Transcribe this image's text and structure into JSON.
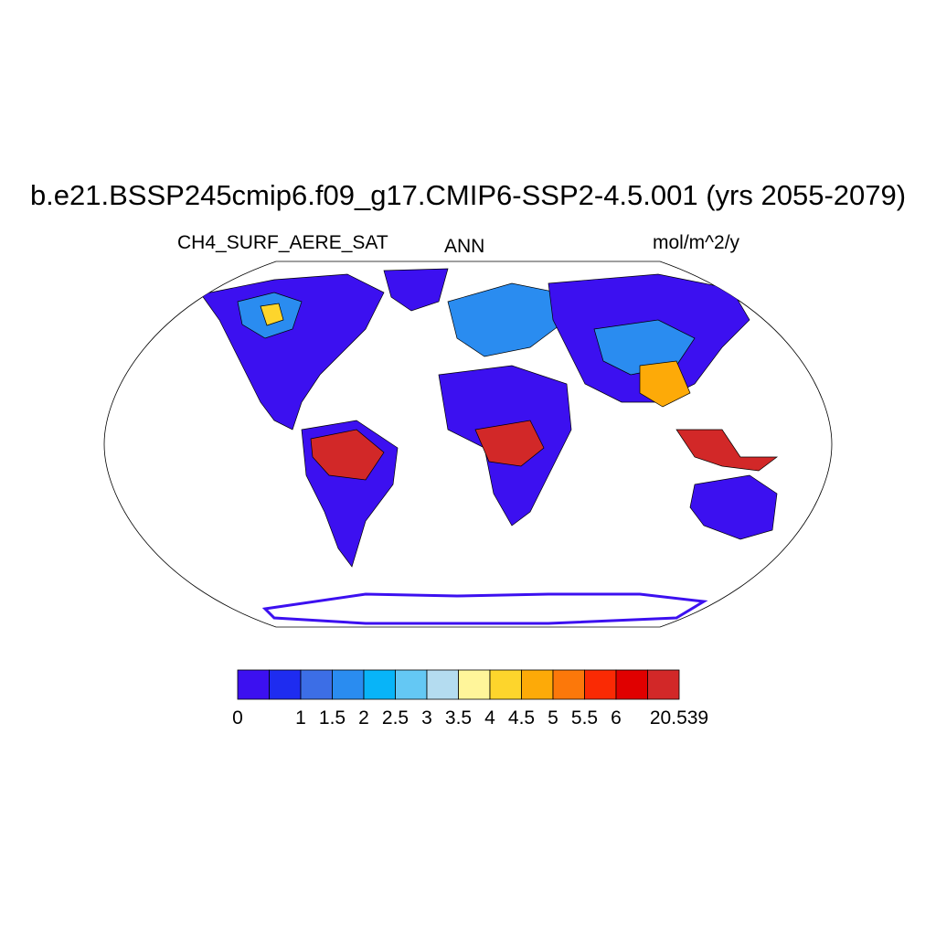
{
  "title": "b.e21.BSSP245cmip6.f09_g17.CMIP6-SSP2-4.5.001 (yrs 2055-2079)",
  "variable": "CH4_SURF_AERE_SAT",
  "season": "ANN",
  "units": "mol/m^2/y",
  "colorbar": {
    "colors": [
      "#3c10f0",
      "#1e2cf0",
      "#3c6ee6",
      "#2a8cf0",
      "#08b4f8",
      "#64c8f4",
      "#b4dcf0",
      "#fff59a",
      "#fdd52c",
      "#fdaa08",
      "#fc780a",
      "#fa2a04",
      "#e00000",
      "#d22828"
    ],
    "labels": [
      "0",
      "",
      "1",
      "1.5",
      "2",
      "2.5",
      "3",
      "3.5",
      "4",
      "4.5",
      "5",
      "5.5",
      "6",
      "",
      "20.539"
    ]
  },
  "map_legend": {
    "land_colors": [
      "#3c10f0",
      "#2a8cf0",
      "#fdd52c",
      "#d22828"
    ]
  }
}
